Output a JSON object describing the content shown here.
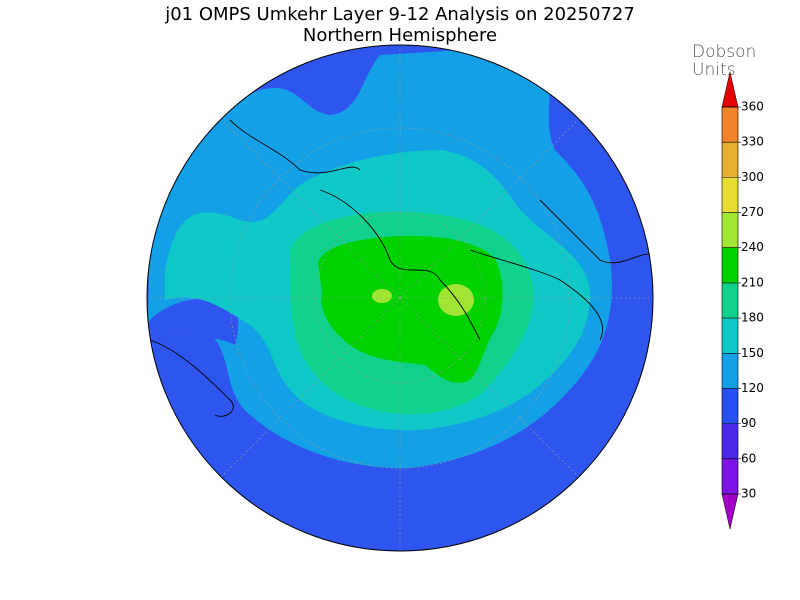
{
  "header": {
    "title": "j01 OMPS Umkehr Layer 9-12 Analysis on 20250727",
    "subtitle": "Northern Hemisphere"
  },
  "colorbar": {
    "label_lines": [
      "Dobson",
      "Units"
    ],
    "ticks": [
      30,
      60,
      90,
      120,
      150,
      180,
      210,
      240,
      270,
      300,
      330,
      360
    ],
    "colors": [
      "#a000c8",
      "#7c14e6",
      "#4b28e6",
      "#2850f0",
      "#14a0e6",
      "#10c8c8",
      "#10d28c",
      "#00d200",
      "#a0e632",
      "#e6dc32",
      "#e6af2d",
      "#f08228",
      "#e60000"
    ]
  }
}
